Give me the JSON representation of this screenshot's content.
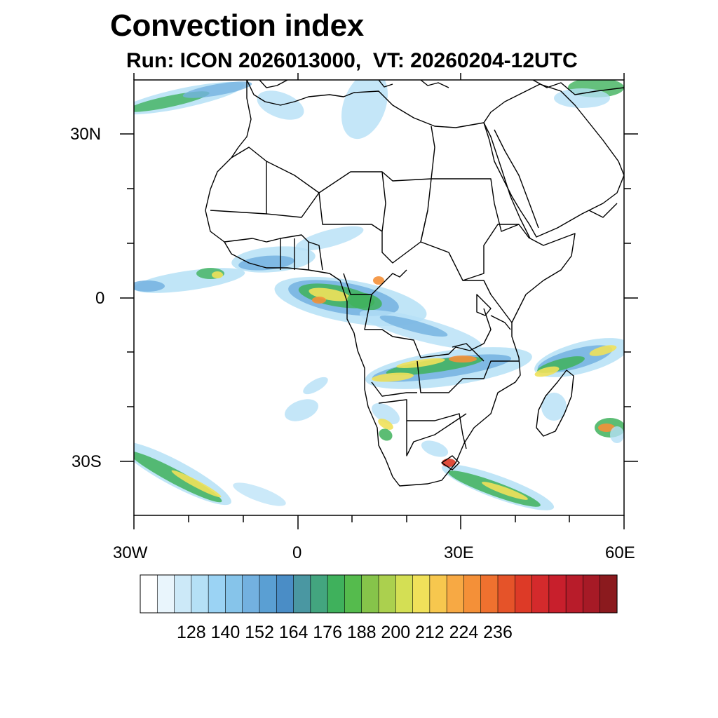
{
  "title": "Convection index",
  "subtitle": "Run: ICON 2026013000,  VT: 20260204-12UTC",
  "axes": {
    "lat_labels": [
      "30N",
      "0",
      "30S"
    ],
    "lon_labels": [
      "30W",
      "0",
      "30E",
      "60E"
    ],
    "lon_range": [
      -30,
      60
    ],
    "lat_range": [
      -40,
      40
    ]
  },
  "colorbar": {
    "labels": [
      "128",
      "140",
      "152",
      "164",
      "176",
      "188",
      "200",
      "212",
      "224",
      "236"
    ],
    "colors": [
      "#ffffff",
      "#e9f5fc",
      "#cce9f8",
      "#b5e0f6",
      "#9bd3f4",
      "#86c4ea",
      "#73b1e0",
      "#5a9fd3",
      "#4a8dc6",
      "#4a97a2",
      "#43a57f",
      "#3fb15c",
      "#55bb4d",
      "#86c44a",
      "#abd04e",
      "#d4df54",
      "#f0e15a",
      "#f7c74e",
      "#f7a944",
      "#f49038",
      "#ef712f",
      "#e55329",
      "#dd3a27",
      "#d42a2c",
      "#c81f2c",
      "#b81c2a",
      "#a61a26",
      "#8b1a1e"
    ]
  },
  "palette": {
    "light": "#b5e0f6",
    "blue": "#73b1e0",
    "teal": "#4a97a2",
    "green": "#3fb15c",
    "yellow": "#f0e15a",
    "orange": "#f49038",
    "red": "#dd3a27"
  }
}
